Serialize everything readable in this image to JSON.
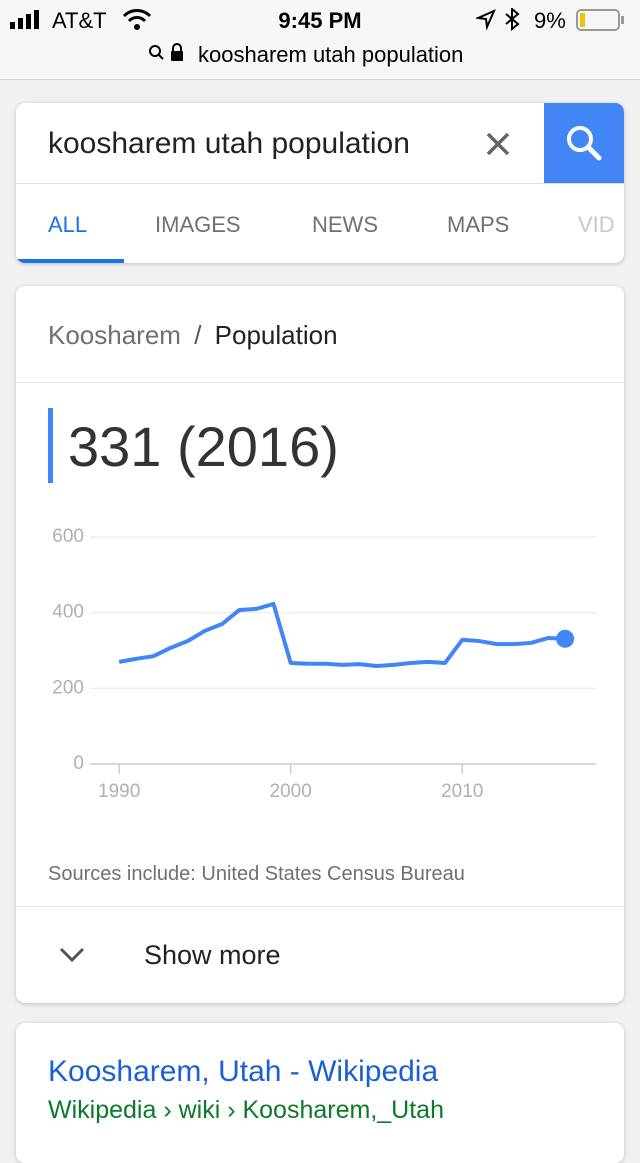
{
  "status_bar": {
    "carrier": "AT&T",
    "time": "9:45 PM",
    "battery": "9%"
  },
  "address_bar": {
    "url": "koosharem utah population"
  },
  "search": {
    "query": "koosharem utah population",
    "tabs": [
      "ALL",
      "IMAGES",
      "NEWS",
      "MAPS",
      "VID"
    ]
  },
  "card": {
    "breadcrumb": [
      "Koosharem",
      "Population"
    ],
    "separator": "/",
    "headline": "331 (2016)",
    "sources": "Sources include: United States Census Bureau",
    "show_more": "Show more"
  },
  "chart_data": {
    "type": "line",
    "x": [
      1990,
      1991,
      1992,
      1993,
      1994,
      1995,
      1996,
      1997,
      1998,
      1999,
      2000,
      2001,
      2002,
      2003,
      2004,
      2005,
      2006,
      2007,
      2008,
      2009,
      2010,
      2011,
      2012,
      2013,
      2014,
      2015,
      2016
    ],
    "values": [
      270,
      278,
      285,
      307,
      325,
      352,
      370,
      407,
      410,
      423,
      267,
      265,
      265,
      262,
      264,
      259,
      262,
      267,
      270,
      267,
      328,
      325,
      317,
      317,
      320,
      333,
      331
    ],
    "color": "#4285f4",
    "xlim": [
      1988.3,
      2017.8
    ],
    "xticks": [
      1990,
      2000,
      2010
    ],
    "ylim": [
      0,
      600
    ],
    "yticks": [
      0,
      200,
      400,
      600
    ],
    "grid": true
  },
  "result": {
    "title": "Koosharem, Utah - Wikipedia",
    "url": "Wikipedia › wiki › Koosharem,_Utah"
  }
}
